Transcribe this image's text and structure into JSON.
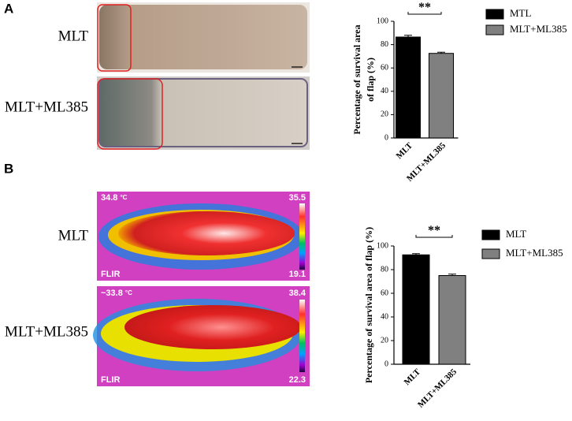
{
  "panels": [
    {
      "label": "A",
      "rows": [
        "MLT",
        "MLT+ML385"
      ]
    },
    {
      "label": "B",
      "rows": [
        "MLT",
        "MLT+ML385"
      ],
      "thermal": [
        {
          "reading": "34.8",
          "unit": "°C",
          "max": "35.5",
          "min": "19.1",
          "brand": "FLIR"
        },
        {
          "reading": "~33.8",
          "unit": "°C",
          "max": "38.4",
          "min": "22.3",
          "brand": "FLIR"
        }
      ]
    }
  ],
  "chart_data": [
    {
      "type": "bar",
      "ylabel": [
        "Percentage of survival area",
        "of flap (%)"
      ],
      "categories": [
        "MLT",
        "MLT+ML385"
      ],
      "values": [
        86.5,
        72.5
      ],
      "errors": [
        1.5,
        1
      ],
      "colors": [
        "#000000",
        "#808080"
      ],
      "legend": [
        "MTL",
        "MLT+ML385"
      ],
      "annotation": "**",
      "ylim": [
        0,
        100
      ],
      "yticks": [
        0,
        20,
        40,
        60,
        80,
        100
      ]
    },
    {
      "type": "bar",
      "ylabel": [
        "Percentage of survival area of flap (%)"
      ],
      "categories": [
        "MLT",
        "MLT+ML385"
      ],
      "values": [
        92.5,
        75
      ],
      "errors": [
        1,
        1.2
      ],
      "colors": [
        "#000000",
        "#808080"
      ],
      "legend": [
        "MLT",
        "MLT+ML385"
      ],
      "annotation": "**",
      "ylim": [
        0,
        100
      ],
      "yticks": [
        0,
        20,
        40,
        60,
        80,
        100
      ]
    }
  ]
}
